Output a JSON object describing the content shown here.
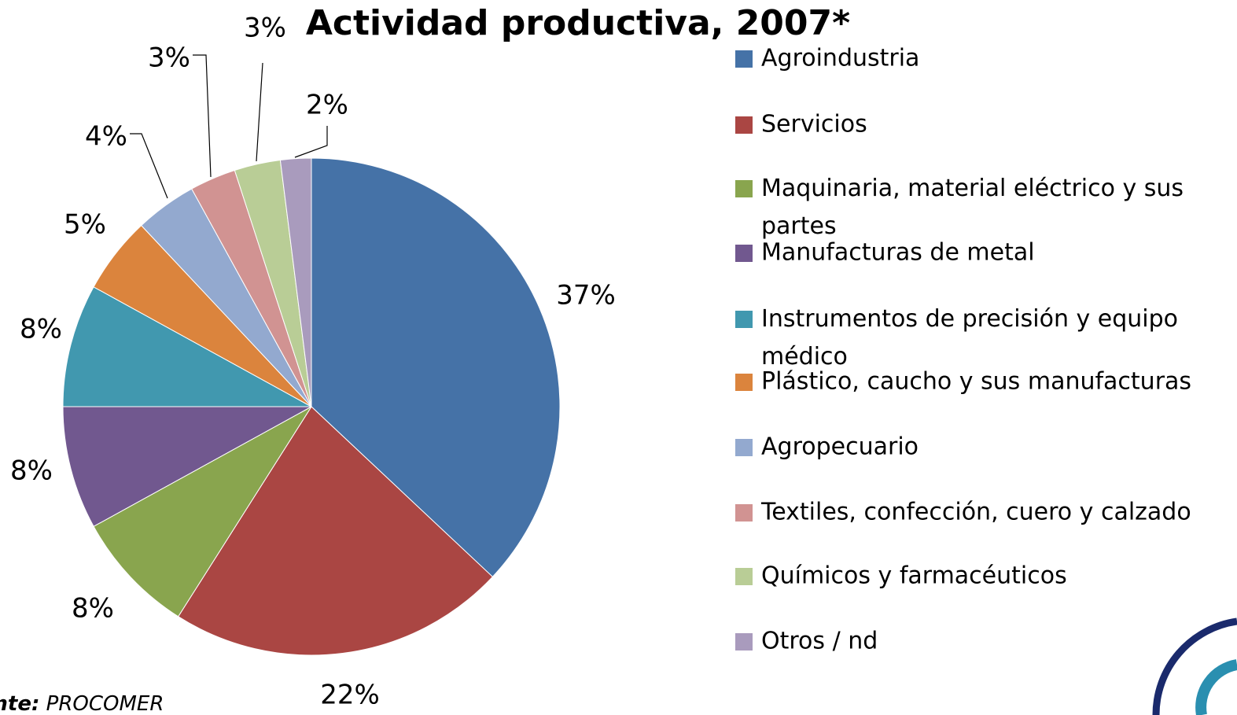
{
  "chart_data": {
    "type": "pie",
    "title": "Actividad productiva, 2007*",
    "categories": [
      "Agroindustria",
      "Servicios",
      "Maquinaria, material eléctrico y sus partes",
      "Manufacturas de metal",
      "Instrumentos de precisión y equipo médico",
      "Plástico, caucho y sus manufacturas",
      "Agropecuario",
      "Textiles, confección, cuero y calzado",
      "Químicos y farmacéuticos",
      "Otros / nd"
    ],
    "values": [
      37,
      22,
      8,
      8,
      8,
      5,
      4,
      3,
      3,
      2
    ],
    "value_labels": [
      "37%",
      "22%",
      "8%",
      "8%",
      "8%",
      "5%",
      "4%",
      "3%",
      "3%",
      "2%"
    ],
    "colors": [
      "#4572a7",
      "#aa4643",
      "#89a54e",
      "#71588f",
      "#4198af",
      "#db843d",
      "#93a9cf",
      "#d19392",
      "#b9cd96",
      "#a99bbd"
    ],
    "legend": "right",
    "source": {
      "label": "Fuente:",
      "name": "PROCOMER"
    }
  }
}
